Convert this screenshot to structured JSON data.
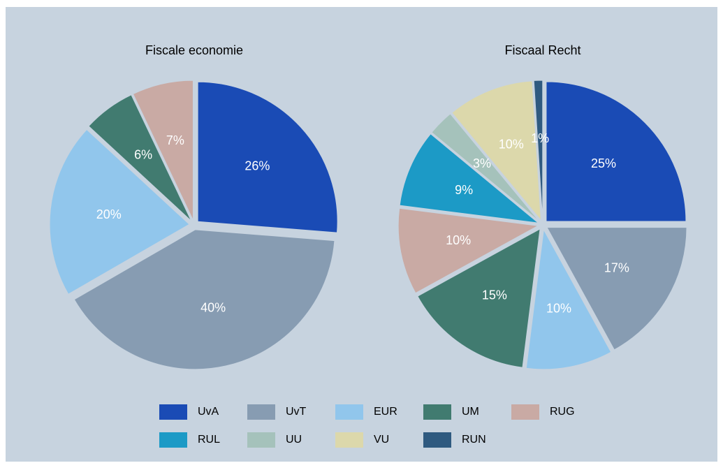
{
  "chart_data": [
    {
      "type": "pie",
      "title": "Fiscale economie",
      "categories": [
        "UvA",
        "UvT",
        "EUR",
        "UM",
        "RUG"
      ],
      "values": [
        26,
        40,
        20,
        6,
        7
      ],
      "value_labels": [
        "26%",
        "40%",
        "20%",
        "6%",
        "7%"
      ],
      "colors": [
        "#1a4bb5",
        "#879cb2",
        "#91c6ec",
        "#417b70",
        "#c9aaa4"
      ]
    },
    {
      "type": "pie",
      "title": "Fiscaal Recht",
      "categories": [
        "UvA",
        "UvT",
        "EUR",
        "UM",
        "RUG",
        "RUL",
        "UU",
        "VU",
        "RUN"
      ],
      "values": [
        25,
        17,
        10,
        15,
        10,
        9,
        3,
        10,
        1
      ],
      "value_labels": [
        "25%",
        "17%",
        "10%",
        "15%",
        "10%",
        "9%",
        "3%",
        "10%",
        "1%"
      ],
      "colors": [
        "#1a4bb5",
        "#879cb2",
        "#91c6ec",
        "#417b70",
        "#c9aaa4",
        "#1c9ac6",
        "#a5c2bb",
        "#dcd8ab",
        "#2f5a80"
      ],
      "legend": "bottom"
    }
  ]
}
